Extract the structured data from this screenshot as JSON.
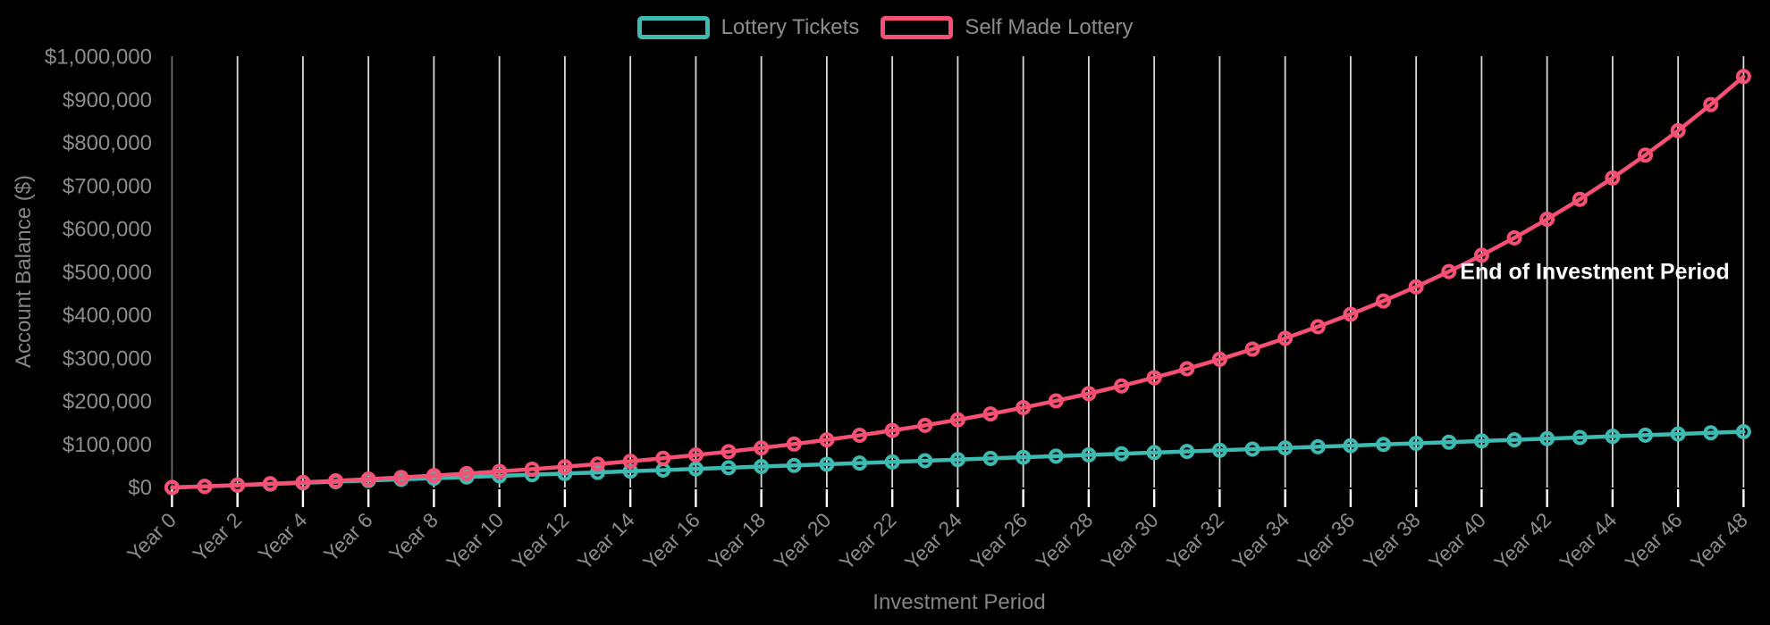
{
  "chart_data": {
    "type": "line",
    "title": "",
    "xlabel": "Investment Period",
    "ylabel": "Account Balance ($)",
    "background": "#000000",
    "grid": "vertical-only",
    "legend_position": "top-center",
    "x": [
      0,
      1,
      2,
      3,
      4,
      5,
      6,
      7,
      8,
      9,
      10,
      11,
      12,
      13,
      14,
      15,
      16,
      17,
      18,
      19,
      20,
      21,
      22,
      23,
      24,
      25,
      26,
      27,
      28,
      29,
      30,
      31,
      32,
      33,
      34,
      35,
      36,
      37,
      38,
      39,
      40,
      41,
      42,
      43,
      44,
      45,
      46,
      47,
      48
    ],
    "x_tick_step": 2,
    "x_tick_labels": [
      "Year 0",
      "Year 2",
      "Year 4",
      "Year 6",
      "Year 8",
      "Year 10",
      "Year 12",
      "Year 14",
      "Year 16",
      "Year 18",
      "Year 20",
      "Year 22",
      "Year 24",
      "Year 26",
      "Year 28",
      "Year 30",
      "Year 32",
      "Year 34",
      "Year 36",
      "Year 38",
      "Year 40",
      "Year 42",
      "Year 44",
      "Year 46",
      "Year 48"
    ],
    "ylim": [
      0,
      1000000
    ],
    "y_tick_values": [
      0,
      100000,
      200000,
      300000,
      400000,
      500000,
      600000,
      700000,
      800000,
      900000,
      1000000
    ],
    "y_tick_labels": [
      "$0",
      "$100,000",
      "$200,000",
      "$300,000",
      "$400,000",
      "$500,000",
      "$600,000",
      "$700,000",
      "$800,000",
      "$900,000",
      "$1,000,000"
    ],
    "series": [
      {
        "name": "Lottery Tickets",
        "color": "#3DBAB2",
        "values": [
          0,
          2700,
          5400,
          8100,
          10800,
          13500,
          16200,
          18900,
          21600,
          24300,
          27000,
          29700,
          32400,
          35100,
          37800,
          40500,
          43200,
          45900,
          48600,
          51300,
          54000,
          56700,
          59400,
          62100,
          64800,
          67500,
          70200,
          72900,
          75600,
          78300,
          81000,
          83700,
          86400,
          89100,
          91800,
          94500,
          97200,
          99900,
          102600,
          105300,
          108000,
          110700,
          113400,
          116100,
          118800,
          121500,
          124200,
          126900,
          129600
        ]
      },
      {
        "name": "Self Made Lottery",
        "color": "#F85073",
        "values": [
          0,
          2700,
          5589,
          8680,
          11988,
          15527,
          19313,
          23365,
          27701,
          32340,
          37303,
          42614,
          48297,
          54377,
          60884,
          67847,
          75299,
          83270,
          91799,
          100925,
          110690,
          121138,
          132318,
          144280,
          157080,
          170776,
          185430,
          201110,
          217888,
          235840,
          255049,
          275602,
          297595,
          321126,
          346305,
          373247,
          402074,
          432919,
          465923,
          501238,
          539025,
          579457,
          622719,
          669009,
          718540,
          771538,
          828246,
          888923,
          953848
        ]
      }
    ],
    "annotation": {
      "text": "End of Investment Period"
    },
    "colors": {
      "gridline": "#ffffff",
      "first_gridline": "#6f6f6f",
      "tick_label": "#8c8c8c",
      "axis_title": "#858585",
      "annotation_text": "#ffffff"
    }
  }
}
